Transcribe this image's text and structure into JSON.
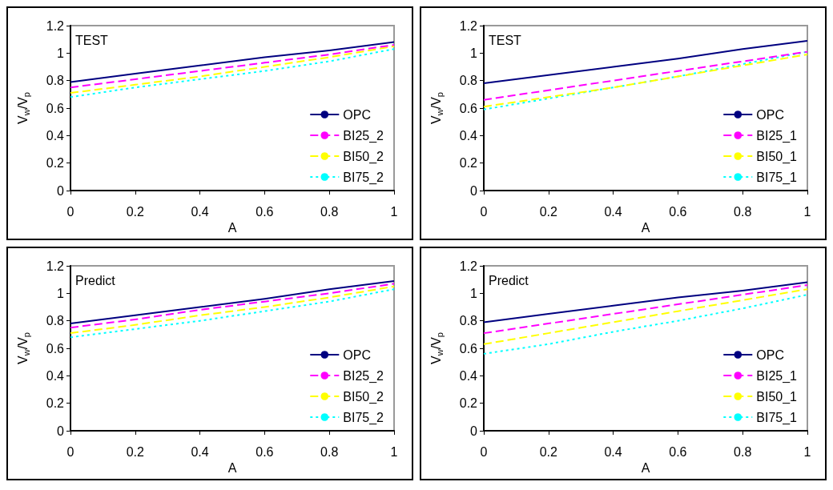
{
  "chart_data": [
    {
      "type": "line",
      "annotations": [
        "TEST"
      ],
      "xlabel": "A",
      "ylabel": "V$_{w}$/V$_{p}$",
      "x": [
        0,
        0.2,
        0.4,
        0.6,
        0.8,
        1
      ],
      "xlim": [
        0,
        1
      ],
      "xticks": [
        0,
        0.2,
        0.4,
        0.6,
        0.8,
        1
      ],
      "ylim": [
        0,
        1.2
      ],
      "yticks": [
        0,
        0.2,
        0.4,
        0.6,
        0.8,
        1,
        1.2
      ],
      "grid": false,
      "legend": "right",
      "marker": "none",
      "series": [
        {
          "name": "OPC",
          "color": "#000080",
          "line_style": "solid",
          "values": [
            0.79,
            0.85,
            0.91,
            0.97,
            1.02,
            1.08
          ]
        },
        {
          "name": "BI25_2",
          "color": "#ff00ff",
          "line_style": "dashed",
          "values": [
            0.75,
            0.81,
            0.87,
            0.93,
            0.99,
            1.06
          ]
        },
        {
          "name": "BI50_2",
          "color": "#ffff00",
          "line_style": "dashed",
          "values": [
            0.71,
            0.77,
            0.83,
            0.9,
            0.97,
            1.05
          ]
        },
        {
          "name": "BI75_2",
          "color": "#00ffff",
          "line_style": "dotted",
          "values": [
            0.68,
            0.75,
            0.81,
            0.87,
            0.94,
            1.03
          ]
        }
      ]
    },
    {
      "type": "line",
      "annotations": [
        "TEST"
      ],
      "xlabel": "A",
      "ylabel": "V$_{w}$/V$_{p}$",
      "x": [
        0,
        0.2,
        0.4,
        0.6,
        0.8,
        1
      ],
      "xlim": [
        0,
        1
      ],
      "xticks": [
        0,
        0.2,
        0.4,
        0.6,
        0.8,
        1
      ],
      "ylim": [
        0,
        1.2
      ],
      "yticks": [
        0,
        0.2,
        0.4,
        0.6,
        0.8,
        1,
        1.2
      ],
      "grid": false,
      "legend": "right",
      "marker": "none",
      "series": [
        {
          "name": "OPC",
          "color": "#000080",
          "line_style": "solid",
          "values": [
            0.78,
            0.84,
            0.9,
            0.96,
            1.03,
            1.09
          ]
        },
        {
          "name": "BI25_1",
          "color": "#ff00ff",
          "line_style": "dashed",
          "values": [
            0.66,
            0.73,
            0.8,
            0.87,
            0.94,
            1.01
          ]
        },
        {
          "name": "BI50_1",
          "color": "#ffff00",
          "line_style": "dashed",
          "values": [
            0.61,
            0.68,
            0.75,
            0.83,
            0.91,
            0.99
          ]
        },
        {
          "name": "BI75_1",
          "color": "#00ffff",
          "line_style": "dotted",
          "values": [
            0.59,
            0.67,
            0.75,
            0.83,
            0.92,
            1.01
          ]
        }
      ]
    },
    {
      "type": "line",
      "annotations": [
        "Predict"
      ],
      "xlabel": "A",
      "ylabel": "V$_{w}$/V$_{p}$",
      "x": [
        0,
        0.2,
        0.4,
        0.6,
        0.8,
        1
      ],
      "xlim": [
        0,
        1
      ],
      "xticks": [
        0,
        0.2,
        0.4,
        0.6,
        0.8,
        1
      ],
      "ylim": [
        0,
        1.2
      ],
      "yticks": [
        0,
        0.2,
        0.4,
        0.6,
        0.8,
        1,
        1.2
      ],
      "grid": false,
      "legend": "right",
      "marker": "none",
      "series": [
        {
          "name": "OPC",
          "color": "#000080",
          "line_style": "solid",
          "values": [
            0.78,
            0.84,
            0.9,
            0.96,
            1.03,
            1.09
          ]
        },
        {
          "name": "BI25_2",
          "color": "#ff00ff",
          "line_style": "dashed",
          "values": [
            0.75,
            0.81,
            0.88,
            0.94,
            1.0,
            1.07
          ]
        },
        {
          "name": "BI50_2",
          "color": "#ffff00",
          "line_style": "dashed",
          "values": [
            0.71,
            0.77,
            0.84,
            0.9,
            0.97,
            1.05
          ]
        },
        {
          "name": "BI75_2",
          "color": "#00ffff",
          "line_style": "dotted",
          "values": [
            0.68,
            0.74,
            0.8,
            0.87,
            0.94,
            1.03
          ]
        }
      ]
    },
    {
      "type": "line",
      "annotations": [
        "Predict"
      ],
      "xlabel": "A",
      "ylabel": "V$_{w}$/V$_{p}$",
      "x": [
        0,
        0.2,
        0.4,
        0.6,
        0.8,
        1
      ],
      "xlim": [
        0,
        1
      ],
      "xticks": [
        0,
        0.2,
        0.4,
        0.6,
        0.8,
        1
      ],
      "ylim": [
        0,
        1.2
      ],
      "yticks": [
        0,
        0.2,
        0.4,
        0.6,
        0.8,
        1,
        1.2
      ],
      "grid": false,
      "legend": "right",
      "marker": "none",
      "series": [
        {
          "name": "OPC",
          "color": "#000080",
          "line_style": "solid",
          "values": [
            0.79,
            0.85,
            0.91,
            0.97,
            1.02,
            1.08
          ]
        },
        {
          "name": "BI25_1",
          "color": "#ff00ff",
          "line_style": "dashed",
          "values": [
            0.71,
            0.78,
            0.85,
            0.92,
            0.99,
            1.06
          ]
        },
        {
          "name": "BI50_1",
          "color": "#ffff00",
          "line_style": "dashed",
          "values": [
            0.63,
            0.71,
            0.79,
            0.87,
            0.95,
            1.03
          ]
        },
        {
          "name": "BI75_1",
          "color": "#00ffff",
          "line_style": "dotted",
          "values": [
            0.56,
            0.63,
            0.72,
            0.8,
            0.89,
            0.99
          ]
        }
      ]
    }
  ]
}
